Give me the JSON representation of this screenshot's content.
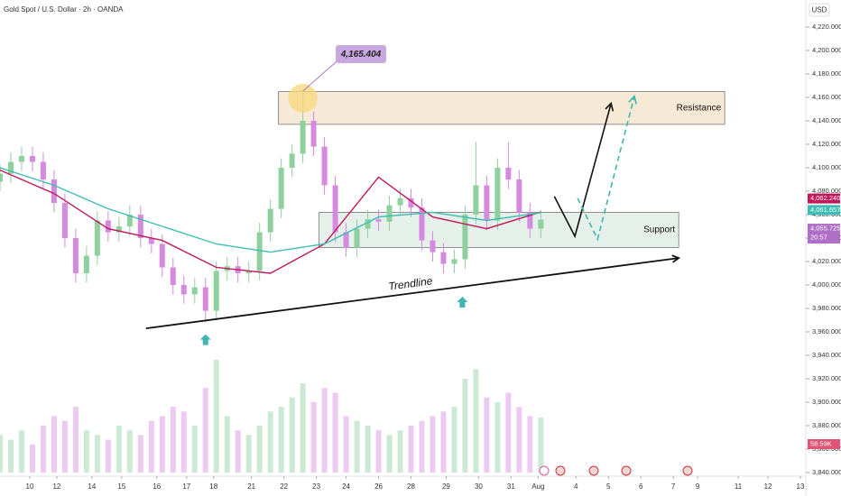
{
  "chart_data": {
    "type": "candlestick",
    "title": "Gold Spot / U.S. Dollar · 2h · OANDA",
    "currency": "USD",
    "up_color": "#8fd19e",
    "down_color": "#d58ae0",
    "x": [
      0,
      4,
      8,
      12,
      16,
      20,
      24,
      28,
      32,
      36,
      40,
      44,
      48,
      52,
      56,
      60,
      64,
      68,
      72,
      76,
      80,
      84,
      88,
      92,
      96,
      100,
      104,
      108,
      112,
      116,
      120,
      124,
      128,
      132,
      136,
      140,
      144,
      148,
      152,
      156,
      160,
      164,
      168,
      172,
      176,
      180,
      184,
      188,
      192,
      196,
      200
    ],
    "open": [
      4088,
      4095,
      4105,
      4110,
      4105,
      4090,
      4070,
      4040,
      4010,
      4025,
      4055,
      4045,
      4050,
      4060,
      4040,
      4035,
      4015,
      4000,
      3992,
      3998,
      3978,
      4012,
      4016,
      4010,
      4012,
      4045,
      4065,
      4100,
      4112,
      4140,
      4118,
      4085,
      4045,
      4032,
      4048,
      4056,
      4054,
      4068,
      4074,
      4066,
      4038,
      4028,
      4018,
      4022,
      4060,
      4085,
      4055,
      4100,
      4090,
      4062,
      4048
    ],
    "high": [
      4103,
      4113,
      4118,
      4118,
      4113,
      4098,
      4078,
      4048,
      4033,
      4063,
      4063,
      4058,
      4068,
      4068,
      4048,
      4043,
      4023,
      4008,
      4006,
      4006,
      4020,
      4024,
      4024,
      4020,
      4053,
      4073,
      4108,
      4120,
      4165.404,
      4148,
      4126,
      4093,
      4053,
      4056,
      4064,
      4064,
      4076,
      4082,
      4082,
      4074,
      4046,
      4036,
      4030,
      4068,
      4122,
      4093,
      4108,
      4122,
      4098,
      4070,
      4064
    ],
    "low": [
      4080,
      4087,
      4097,
      4097,
      4082,
      4062,
      4032,
      4002,
      4002,
      4017,
      4037,
      4037,
      4042,
      4032,
      4027,
      4007,
      3992,
      3984,
      3984,
      3968,
      3970,
      4004,
      4002,
      4002,
      4004,
      4037,
      4057,
      4092,
      4104,
      4110,
      4077,
      4037,
      4024,
      4024,
      4040,
      4046,
      4046,
      4060,
      4058,
      4030,
      4020,
      4010,
      4010,
      4014,
      4052,
      4047,
      4047,
      4082,
      4054,
      4040,
      4040
    ],
    "close": [
      4095,
      4105,
      4110,
      4105,
      4090,
      4070,
      4040,
      4010,
      4025,
      4055,
      4045,
      4050,
      4060,
      4040,
      4035,
      4015,
      4000,
      3992,
      3998,
      3978,
      4012,
      4016,
      4010,
      4012,
      4045,
      4065,
      4100,
      4112,
      4140,
      4118,
      4085,
      4045,
      4032,
      4048,
      4056,
      4054,
      4068,
      4074,
      4066,
      4038,
      4028,
      4018,
      4022,
      4060,
      4085,
      4055,
      4100,
      4090,
      4062,
      4048,
      4055.725
    ],
    "close_label": "4,055.725",
    "countdown": "20:57",
    "volume": [
      40,
      35,
      45,
      30,
      50,
      60,
      55,
      70,
      45,
      40,
      35,
      50,
      45,
      40,
      55,
      60,
      70,
      65,
      50,
      90,
      120,
      60,
      45,
      40,
      50,
      65,
      70,
      80,
      95,
      75,
      90,
      85,
      60,
      55,
      50,
      45,
      40,
      45,
      50,
      55,
      60,
      65,
      70,
      100,
      110,
      80,
      75,
      85,
      70,
      60,
      58.59
    ],
    "volume_label": "58.59K",
    "moving_averages": [
      {
        "color": "#c2185b",
        "x": [
          0,
          20,
          40,
          60,
          80,
          100,
          120,
          140,
          160,
          180,
          200
        ],
        "values": [
          4098,
          4078,
          4048,
          4038,
          4015,
          4010,
          4035,
          4092,
          4058,
          4048,
          4062.24
        ],
        "last_label": "4,062.240"
      },
      {
        "color": "#3dbdb5",
        "x": [
          0,
          20,
          40,
          60,
          80,
          100,
          120,
          140,
          160,
          180,
          200
        ],
        "values": [
          4100,
          4085,
          4065,
          4050,
          4035,
          4028,
          4035,
          4058,
          4062,
          4055,
          4061.657
        ],
        "last_label": "4,061.657"
      }
    ],
    "xlim": [
      0,
      297
    ],
    "ylim": [
      3840,
      4220
    ],
    "yticks": [
      {
        "value": 3840,
        "label": "3,840.000"
      },
      {
        "value": 3860,
        "label": "3,860.000"
      },
      {
        "value": 3880,
        "label": "3,880.000"
      },
      {
        "value": 3900,
        "label": "3,900.000"
      },
      {
        "value": 3920,
        "label": "3,920.000"
      },
      {
        "value": 3940,
        "label": "3,940.000"
      },
      {
        "value": 3960,
        "label": "3,960.000"
      },
      {
        "value": 3980,
        "label": "3,980.000"
      },
      {
        "value": 4000,
        "label": "4,000.000"
      },
      {
        "value": 4020,
        "label": "4,020.000"
      },
      {
        "value": 4040,
        "label": "4,040.000"
      },
      {
        "value": 4060,
        "label": "4,060.000"
      },
      {
        "value": 4080,
        "label": "4,080.000"
      },
      {
        "value": 4100,
        "label": "4,100.000"
      },
      {
        "value": 4120,
        "label": "4,120.000"
      },
      {
        "value": 4140,
        "label": "4,140.000"
      },
      {
        "value": 4160,
        "label": "4,160.000"
      },
      {
        "value": 4180,
        "label": "4,180.000"
      },
      {
        "value": 4200,
        "label": "4,200.000"
      },
      {
        "value": 4220,
        "label": "4,220.000"
      }
    ],
    "xticks": [
      {
        "value": 11,
        "label": "10"
      },
      {
        "value": 21,
        "label": "12"
      },
      {
        "value": 34,
        "label": "14"
      },
      {
        "value": 45,
        "label": "15"
      },
      {
        "value": 58,
        "label": "16"
      },
      {
        "value": 69,
        "label": "17"
      },
      {
        "value": 79,
        "label": "18"
      },
      {
        "value": 93,
        "label": "21"
      },
      {
        "value": 105,
        "label": "22"
      },
      {
        "value": 117,
        "label": "23"
      },
      {
        "value": 128,
        "label": "24"
      },
      {
        "value": 140,
        "label": "26"
      },
      {
        "value": 152,
        "label": "28"
      },
      {
        "value": 165,
        "label": "29"
      },
      {
        "value": 177,
        "label": "30"
      },
      {
        "value": 189,
        "label": "31"
      },
      {
        "value": 199,
        "label": "Aug"
      },
      {
        "value": 213,
        "label": "4"
      },
      {
        "value": 225,
        "label": "5"
      },
      {
        "value": 237,
        "label": "6"
      },
      {
        "value": 249,
        "label": "7"
      },
      {
        "value": 258,
        "label": "9"
      },
      {
        "value": 273,
        "label": "11"
      },
      {
        "value": 284,
        "label": "12"
      },
      {
        "value": 296,
        "label": "13"
      }
    ],
    "high_annotation": {
      "x": 112,
      "value": 4165.404,
      "label": "4,165.404"
    },
    "zones": [
      {
        "label": "Resistance",
        "from": 4137,
        "to": 4165,
        "x": [
          103,
          268
        ],
        "color": "#f3e2c7"
      },
      {
        "label": "Support",
        "from": 4032,
        "to": 4062,
        "x": [
          118,
          251
        ],
        "color": "#dcebe3"
      }
    ],
    "trendline": {
      "label": "Trendline",
      "x": [
        54,
        251
      ],
      "y": [
        3963,
        4023
      ]
    },
    "signal_arrows": {
      "x": [
        76,
        171
      ],
      "y": [
        3958,
        3990
      ],
      "color": "#3fb6b0"
    },
    "projections": [
      {
        "color": "#111111",
        "style": "solid",
        "x": [
          205,
          212.6,
          226
        ],
        "y": [
          4075.6,
          4041.5,
          4155
        ]
      },
      {
        "color": "#3fb6b0",
        "style": "dashed",
        "x": [
          213.6,
          221,
          234.6
        ],
        "y": [
          4074,
          4039,
          4161
        ]
      }
    ]
  }
}
